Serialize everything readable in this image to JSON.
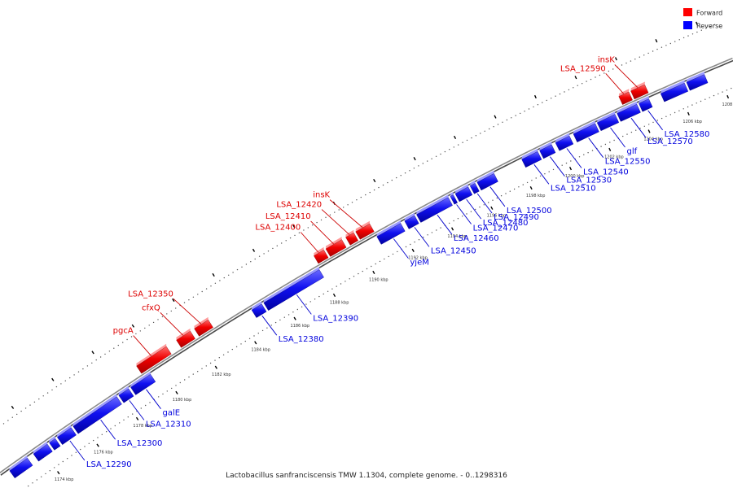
{
  "legend": {
    "forward_label": "Forward",
    "reverse_label": "Reverse",
    "forward_color": "#ff0000",
    "reverse_color": "#0000ff"
  },
  "caption": "Lactobacillus sanfranciscensis TMW 1.1304, complete genome. - 0..1298316",
  "axis": {
    "unit": "kbp",
    "ticks": [
      {
        "kbp": 1174,
        "label": "1174 kbp"
      },
      {
        "kbp": 1176,
        "label": "1176 kbp"
      },
      {
        "kbp": 1178,
        "label": "1178 kbp"
      },
      {
        "kbp": 1180,
        "label": "1180 kbp"
      },
      {
        "kbp": 1182,
        "label": "1182 kbp"
      },
      {
        "kbp": 1184,
        "label": "1184 kbp"
      },
      {
        "kbp": 1186,
        "label": "1186 kbp"
      },
      {
        "kbp": 1188,
        "label": "1188 kbp"
      },
      {
        "kbp": 1190,
        "label": "1190 kbp"
      },
      {
        "kbp": 1192,
        "label": "1192 kbp"
      },
      {
        "kbp": 1194,
        "label": "1194 kbp"
      },
      {
        "kbp": 1196,
        "label": "1196 kbp"
      },
      {
        "kbp": 1198,
        "label": "1198 kbp"
      },
      {
        "kbp": 1200,
        "label": "1200 kbp"
      },
      {
        "kbp": 1202,
        "label": "1202 kbp"
      },
      {
        "kbp": 1204,
        "label": "1204 kbp"
      },
      {
        "kbp": 1206,
        "label": "1206 kbp"
      },
      {
        "kbp": 1208,
        "label": "1208 kbp"
      }
    ]
  },
  "genes": [
    {
      "strand": "reverse",
      "start": 1172.4,
      "end": 1173.3
    },
    {
      "strand": "reverse",
      "start": 1173.6,
      "end": 1174.3
    },
    {
      "strand": "reverse",
      "start": 1174.4,
      "end": 1174.7
    },
    {
      "strand": "reverse",
      "start": 1174.8,
      "end": 1175.5,
      "label": "LSA_12290"
    },
    {
      "strand": "reverse",
      "start": 1175.6,
      "end": 1177.8,
      "label": "LSA_12300"
    },
    {
      "strand": "reverse",
      "start": 1177.9,
      "end": 1178.4,
      "label": "LSA_12310"
    },
    {
      "strand": "reverse",
      "start": 1178.5,
      "end": 1179.5,
      "label": "galE"
    },
    {
      "strand": "forward",
      "start": 1179.2,
      "end": 1180.7,
      "label": "pgcA"
    },
    {
      "strand": "forward",
      "start": 1181.2,
      "end": 1181.9,
      "label": "cfxQ"
    },
    {
      "strand": "forward",
      "start": 1182.1,
      "end": 1182.8,
      "label": "LSA_12350"
    },
    {
      "strand": "reverse",
      "start": 1184.6,
      "end": 1185.1,
      "label": "LSA_12380"
    },
    {
      "strand": "reverse",
      "start": 1185.2,
      "end": 1188.0,
      "label": "LSA_12390"
    },
    {
      "strand": "forward",
      "start": 1188.1,
      "end": 1188.6,
      "label": "LSA_12400"
    },
    {
      "strand": "forward",
      "start": 1188.7,
      "end": 1189.5,
      "label": "LSA_12410"
    },
    {
      "strand": "forward",
      "start": 1189.7,
      "end": 1190.1,
      "label": "LSA_12420"
    },
    {
      "strand": "forward",
      "start": 1190.2,
      "end": 1190.9,
      "label": "insK"
    },
    {
      "strand": "reverse",
      "start": 1190.9,
      "end": 1192.1,
      "label": "yjeM"
    },
    {
      "strand": "reverse",
      "start": 1192.3,
      "end": 1192.8,
      "label": "LSA_12450"
    },
    {
      "strand": "reverse",
      "start": 1192.9,
      "end": 1194.5,
      "label": "LSA_12460"
    },
    {
      "strand": "reverse",
      "start": 1194.6,
      "end": 1194.75,
      "label": "LSA_12470"
    },
    {
      "strand": "reverse",
      "start": 1194.85,
      "end": 1195.5,
      "label": "LSA_12480"
    },
    {
      "strand": "reverse",
      "start": 1195.6,
      "end": 1195.85,
      "label": "LSA_12490"
    },
    {
      "strand": "reverse",
      "start": 1195.95,
      "end": 1196.8,
      "label": "LSA_12500"
    },
    {
      "strand": "reverse",
      "start": 1198.2,
      "end": 1199.0,
      "label": "LSA_12510"
    },
    {
      "strand": "reverse",
      "start": 1199.1,
      "end": 1199.7,
      "label": "LSA_12530"
    },
    {
      "strand": "reverse",
      "start": 1199.9,
      "end": 1200.6,
      "label": "LSA_12540"
    },
    {
      "strand": "reverse",
      "start": 1200.8,
      "end": 1201.9,
      "label": "LSA_12550"
    },
    {
      "strand": "reverse",
      "start": 1202.0,
      "end": 1202.9,
      "label": "glf"
    },
    {
      "strand": "reverse",
      "start": 1203.0,
      "end": 1204.0,
      "label": "LSA_12570"
    },
    {
      "strand": "reverse",
      "start": 1204.1,
      "end": 1204.6,
      "label": "LSA_12580"
    },
    {
      "strand": "forward",
      "start": 1203.4,
      "end": 1203.9,
      "label": "LSA_12590"
    },
    {
      "strand": "forward",
      "start": 1204.0,
      "end": 1204.7,
      "label": "insK"
    },
    {
      "strand": "reverse",
      "start": 1205.2,
      "end": 1206.4
    },
    {
      "strand": "reverse",
      "start": 1206.5,
      "end": 1207.4
    }
  ]
}
